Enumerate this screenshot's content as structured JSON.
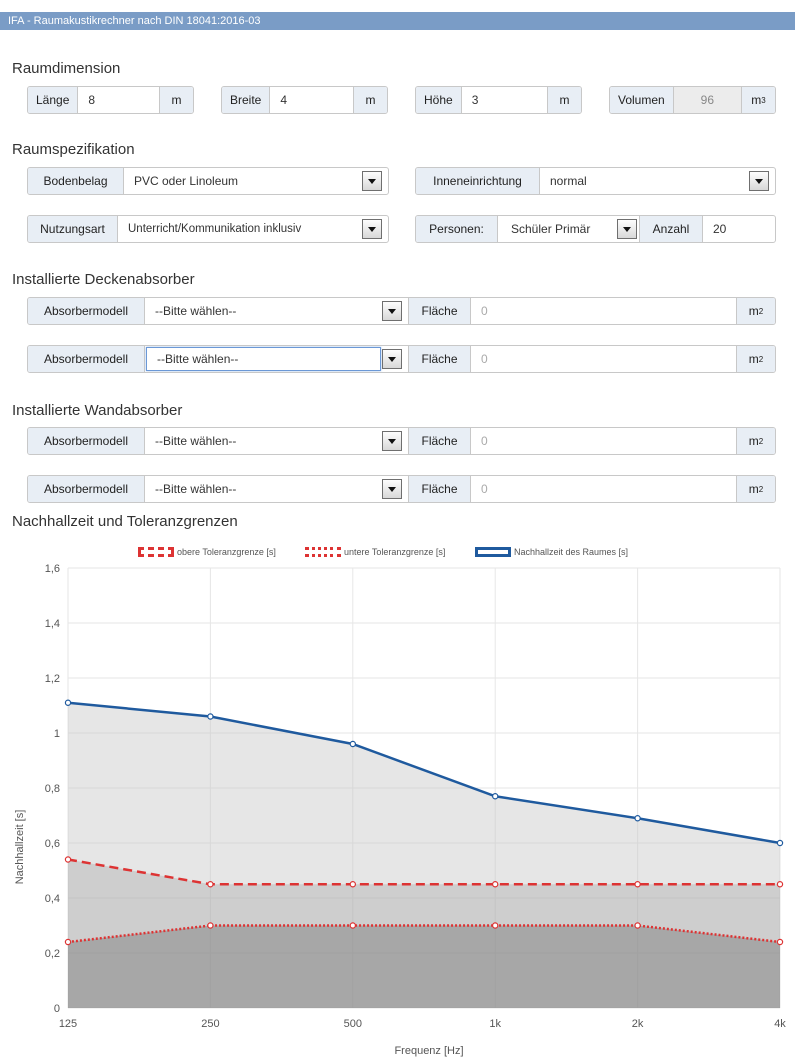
{
  "app_title": "IFA - Raumakustikrechner nach DIN 18041:2016-03",
  "sections": {
    "raumdimension": "Raumdimension",
    "raumspezifikation": "Raumspezifikation",
    "decke": "Installierte Deckenabsorber",
    "wand": "Installierte Wandabsorber",
    "chart": "Nachhallzeit und Toleranzgrenzen"
  },
  "dimension": {
    "laenge": {
      "label": "Länge",
      "value": "8",
      "unit": "m"
    },
    "breite": {
      "label": "Breite",
      "value": "4",
      "unit": "m"
    },
    "hoehe": {
      "label": "Höhe",
      "value": "3",
      "unit": "m"
    },
    "volumen": {
      "label": "Volumen",
      "value": "96",
      "unit": "m",
      "unit_sup": "3"
    }
  },
  "spezifikation": {
    "bodenbelag": {
      "label": "Bodenbelag",
      "value": "PVC oder Linoleum"
    },
    "inneneinrichtung": {
      "label": "Inneneinrichtung",
      "value": "normal"
    },
    "nutzungsart": {
      "label": "Nutzungsart",
      "value": "Unterricht/Kommunikation inklusiv"
    },
    "personen": {
      "label": "Personen:",
      "value": "Schüler Primär"
    },
    "anzahl": {
      "label": "Anzahl",
      "value": "20"
    }
  },
  "absorber_common": {
    "model_label": "Absorbermodell",
    "placeholder": "--Bitte wählen--",
    "area_label": "Fläche",
    "area_value": "0",
    "unit": "m",
    "unit_sup": "2"
  },
  "chart_data": {
    "type": "line",
    "title": "Nachhallzeit und Toleranzgrenzen",
    "xlabel": "Frequenz [Hz]",
    "ylabel": "Nachhallzeit [s]",
    "categories": [
      "125",
      "250",
      "500",
      "1k",
      "2k",
      "4k"
    ],
    "ylim": [
      0,
      1.6
    ],
    "yticks": [
      "0",
      "0,2",
      "0,4",
      "0,6",
      "0,8",
      "1",
      "1,2",
      "1,4",
      "1,6"
    ],
    "grid": true,
    "legend_position": "top",
    "series": [
      {
        "name": "obere Toleranzgrenze [s]",
        "values": [
          0.54,
          0.45,
          0.45,
          0.45,
          0.45,
          0.45
        ],
        "color": "#dd3333",
        "style": "dashed"
      },
      {
        "name": "untere Toleranzgrenze [s]",
        "values": [
          0.24,
          0.3,
          0.3,
          0.3,
          0.3,
          0.24
        ],
        "color": "#dd3333",
        "style": "dotted"
      },
      {
        "name": "Nachhallzeit des Raumes [s]",
        "values": [
          1.11,
          1.06,
          0.96,
          0.77,
          0.69,
          0.6
        ],
        "color": "#1f5a9e",
        "style": "solid"
      }
    ]
  }
}
